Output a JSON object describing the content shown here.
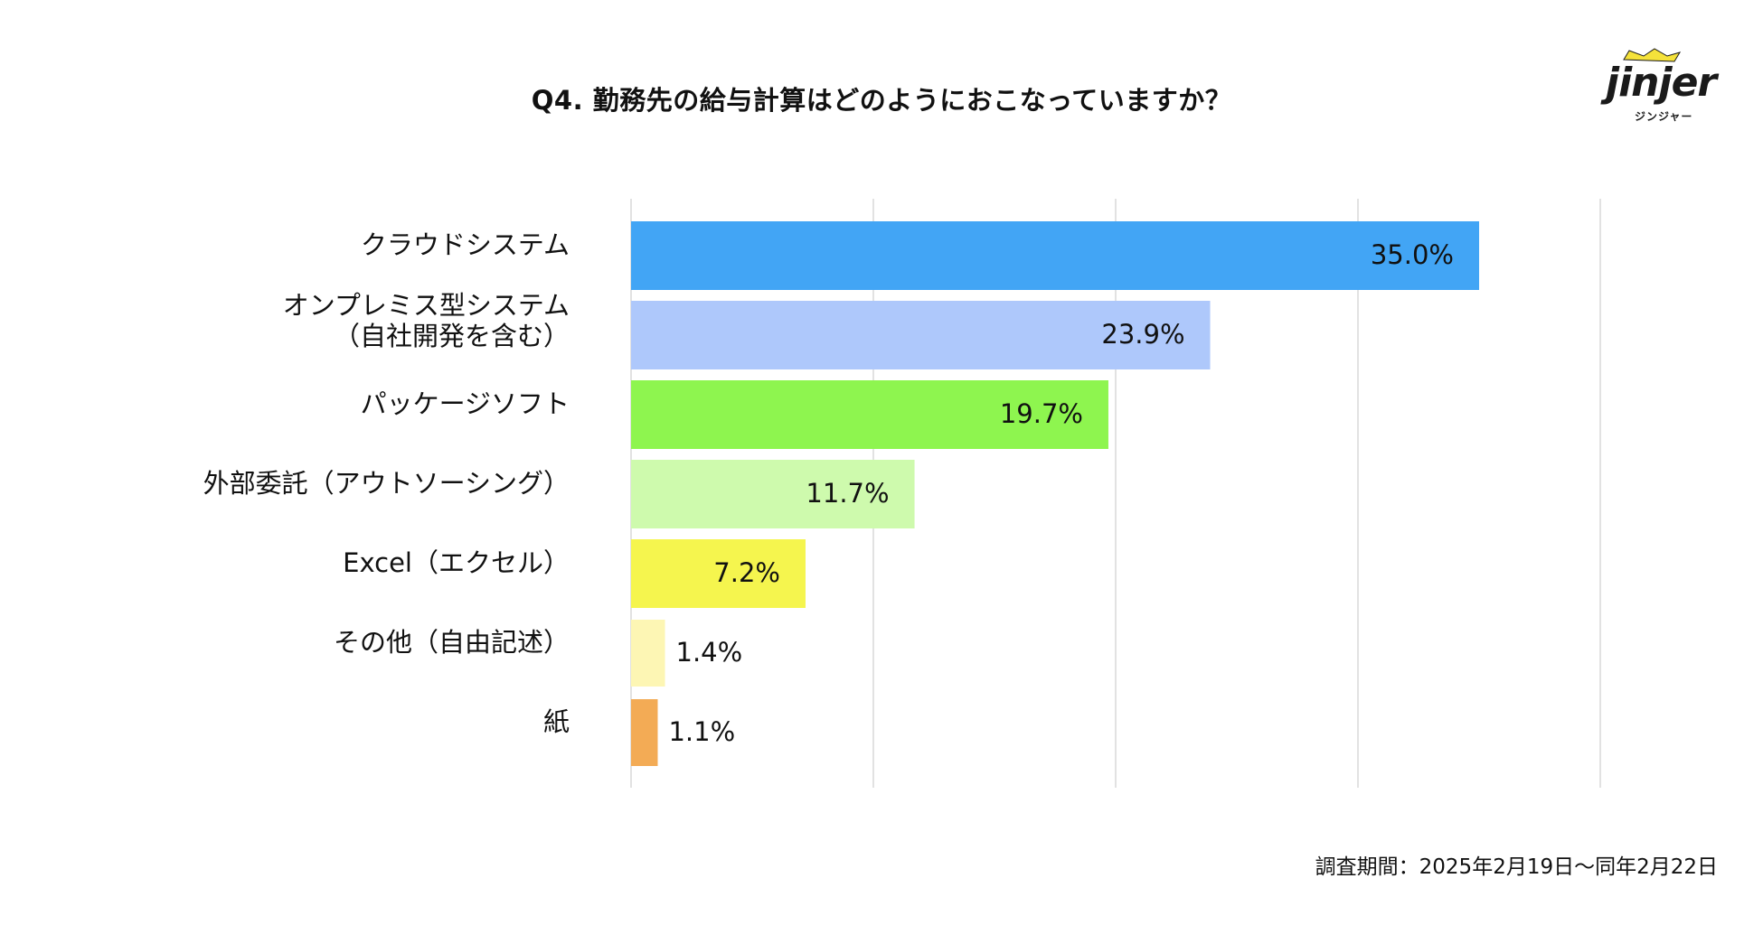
{
  "chart_data": {
    "type": "bar",
    "orientation": "horizontal",
    "title": "Q4. 勤務先の給与計算はどのようにおこなっていますか？",
    "categories": [
      [
        "クラウドシステム"
      ],
      [
        "オンプレミス型システム",
        "（自社開発を含む）"
      ],
      [
        "パッケージソフト"
      ],
      [
        "外部委託（アウトソーシング）"
      ],
      [
        "Excel（エクセル）"
      ],
      [
        "その他（自由記述）"
      ],
      [
        "紙"
      ]
    ],
    "values": [
      35.0,
      23.9,
      19.7,
      11.7,
      7.2,
      1.4,
      1.1
    ],
    "value_labels": [
      "35.0%",
      "23.9%",
      "19.7%",
      "11.7%",
      "7.2%",
      "1.4%",
      "1.1%"
    ],
    "colors": [
      "#42a5f5",
      "#aec8fb",
      "#8ef54f",
      "#cefaad",
      "#f5f54e",
      "#fdf6b4",
      "#f3ab55"
    ],
    "xlim": [
      0,
      40
    ],
    "x_gridlines": [
      0,
      10,
      20,
      30,
      40
    ],
    "xlabel": "",
    "ylabel": "",
    "grid": true,
    "legend": "none"
  },
  "logo": {
    "wordmark": "jinjer",
    "subtitle": "ジンジャー"
  },
  "footnote": "調査期間：2025年2月19日〜同年2月22日"
}
